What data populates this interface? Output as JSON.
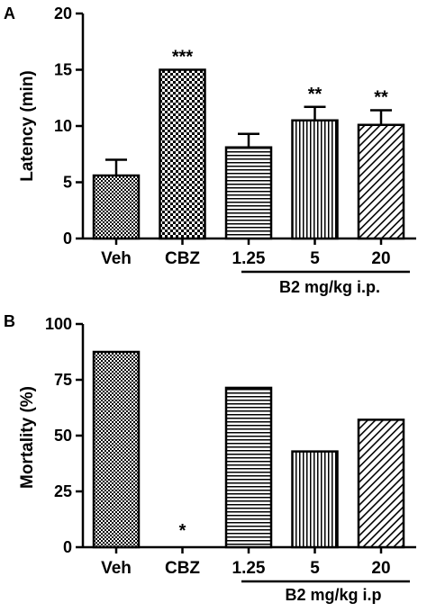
{
  "chart_data": [
    {
      "panel_label": "A",
      "type": "bar",
      "categories": [
        "Veh",
        "CBZ",
        "1.25",
        "5",
        "20"
      ],
      "values": [
        5.6,
        15.0,
        8.1,
        10.5,
        10.1
      ],
      "errors": [
        1.4,
        0,
        1.2,
        1.2,
        1.3
      ],
      "significance": [
        "",
        "***",
        "",
        "**",
        "**"
      ],
      "patterns": [
        "fine-check",
        "check",
        "hlines",
        "vlines",
        "diag"
      ],
      "ylabel": "Latency (min)",
      "ylim": [
        0,
        20
      ],
      "yticks": [
        0,
        5,
        10,
        15,
        20
      ],
      "group_label": "B2 mg/kg i.p.",
      "grid": false
    },
    {
      "panel_label": "B",
      "type": "bar",
      "categories": [
        "Veh",
        "CBZ",
        "1.25",
        "5",
        "20"
      ],
      "values": [
        87.5,
        0,
        71.4,
        42.9,
        57.1
      ],
      "significance": [
        "",
        "*",
        "",
        "",
        ""
      ],
      "patterns": [
        "fine-check",
        "check",
        "hlines",
        "vlines",
        "diag"
      ],
      "ylabel": "Mortality (%)",
      "ylim": [
        0,
        100
      ],
      "yticks": [
        0,
        25,
        50,
        75,
        100
      ],
      "group_label": "B2 mg/kg i.p",
      "grid": false
    }
  ]
}
